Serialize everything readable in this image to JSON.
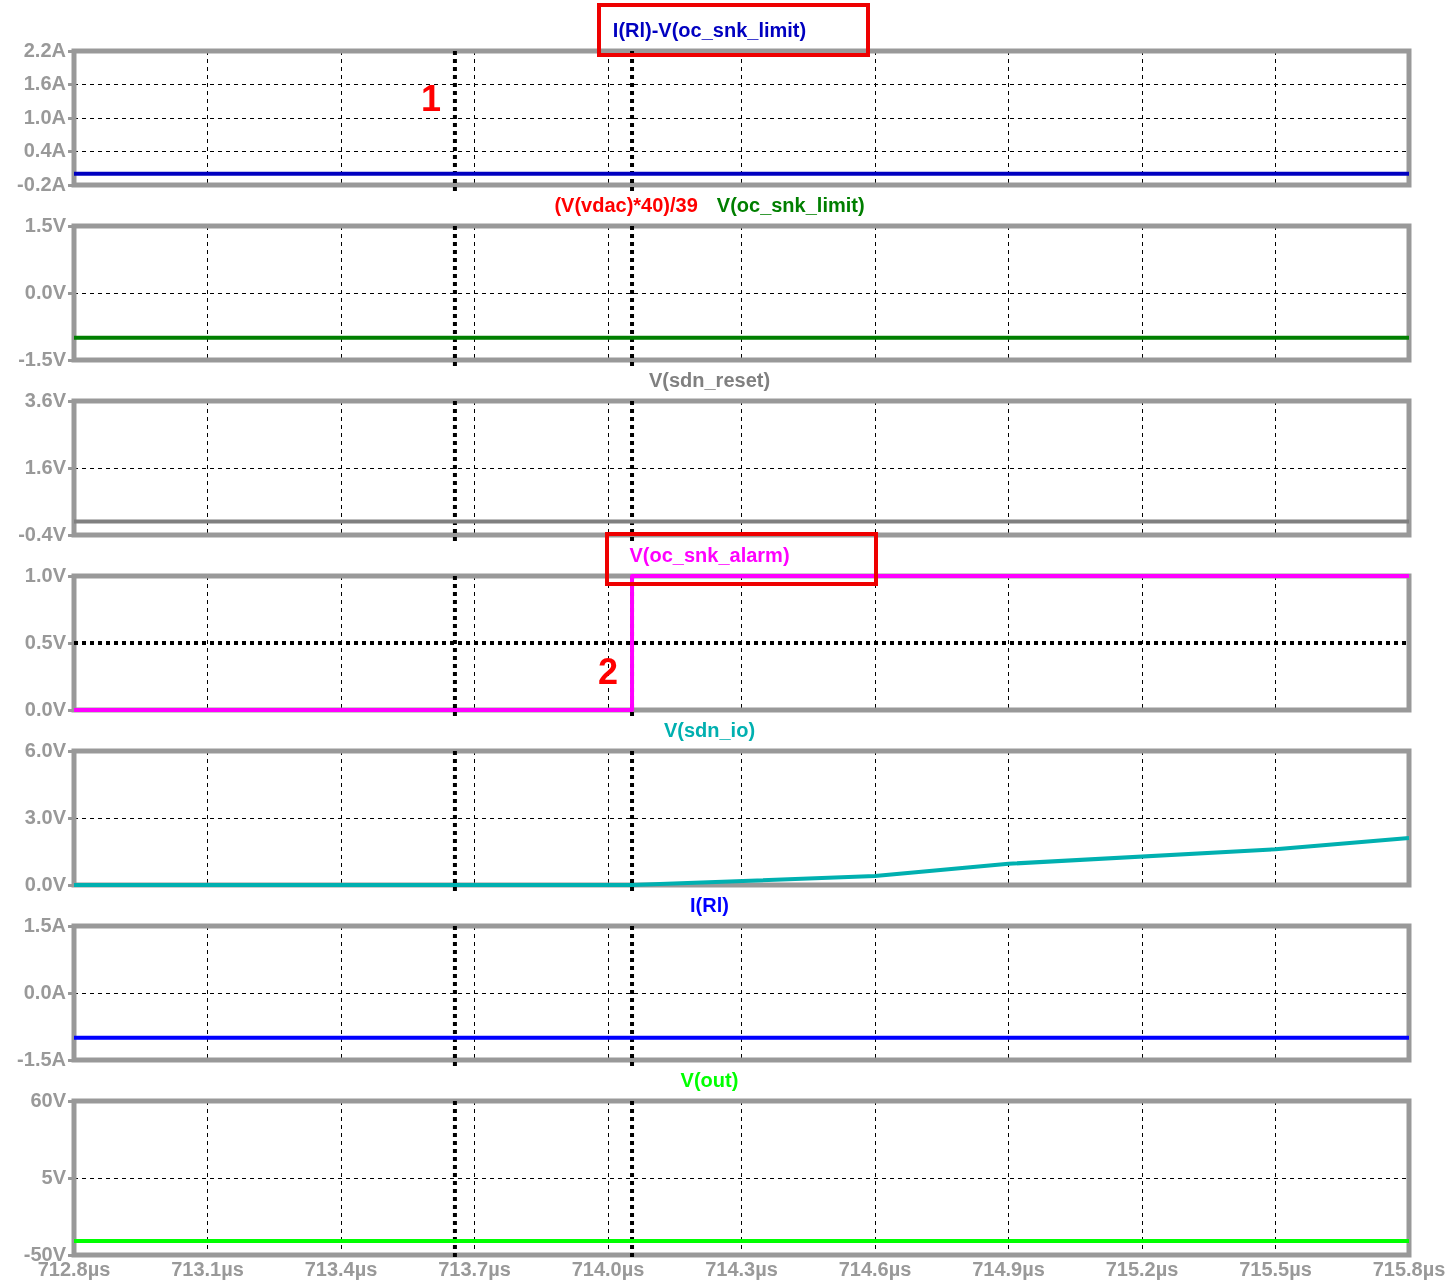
{
  "chart_data": [
    {
      "type": "line",
      "xlim": [
        712.8,
        715.8
      ],
      "xticks": [
        {
          "value": 712.8,
          "label": null
        },
        {
          "value": 713.1,
          "label": null
        },
        {
          "value": 713.4,
          "label": null
        },
        {
          "value": 713.7,
          "label": null
        },
        {
          "value": 714.0,
          "label": null
        },
        {
          "value": 714.3,
          "label": null
        },
        {
          "value": 714.6,
          "label": null
        },
        {
          "value": 714.9,
          "label": null
        },
        {
          "value": 715.2,
          "label": null
        },
        {
          "value": 715.5,
          "label": null
        },
        {
          "value": 715.8,
          "label": null
        }
      ],
      "ylim": [
        -0.2,
        2.2
      ],
      "yticks": [
        {
          "value": -0.2,
          "label": "-0.2A"
        },
        {
          "value": 0.4,
          "label": "0.4A"
        },
        {
          "value": 1.0,
          "label": "1.0A"
        },
        {
          "value": 1.6,
          "label": "1.6A"
        },
        {
          "value": 2.2,
          "label": "2.2A"
        }
      ],
      "tick_labels": "y",
      "grid": true,
      "legend": "top",
      "x": [
        712.8,
        715.8
      ],
      "series": [
        {
          "name": "I(Rl)-V(oc_snk_limit)",
          "color": "#0000c0",
          "values": [
            0,
            0
          ]
        }
      ],
      "ref_lines": [
        {
          "axis": "x",
          "value": 713.656,
          "color": "#000000",
          "line_style": "dotted"
        },
        {
          "axis": "x",
          "value": 714.054,
          "color": "#000000",
          "line_style": "dotted"
        }
      ],
      "annotations": [
        "1"
      ]
    },
    {
      "type": "line",
      "xlim": [
        712.8,
        715.8
      ],
      "xticks": [
        {
          "value": 712.8,
          "label": null
        },
        {
          "value": 713.1,
          "label": null
        },
        {
          "value": 713.4,
          "label": null
        },
        {
          "value": 713.7,
          "label": null
        },
        {
          "value": 714.0,
          "label": null
        },
        {
          "value": 714.3,
          "label": null
        },
        {
          "value": 714.6,
          "label": null
        },
        {
          "value": 714.9,
          "label": null
        },
        {
          "value": 715.2,
          "label": null
        },
        {
          "value": 715.5,
          "label": null
        },
        {
          "value": 715.8,
          "label": null
        }
      ],
      "ylim": [
        -1.5,
        1.5
      ],
      "yticks": [
        {
          "value": -1.5,
          "label": "-1.5V"
        },
        {
          "value": 0,
          "label": "0.0V"
        },
        {
          "value": 1.5,
          "label": "1.5V"
        }
      ],
      "tick_labels": "y",
      "grid": true,
      "legend": "top",
      "x": [
        712.8,
        715.8
      ],
      "series": [
        {
          "name": "(V(vdac)*40)/39",
          "color": "#ff0000",
          "values": [
            null,
            null
          ]
        },
        {
          "name": "V(oc_snk_limit)",
          "color": "#007f00",
          "values": [
            -1.0,
            -1.0
          ]
        }
      ],
      "ref_lines": [
        {
          "axis": "x",
          "value": 713.656,
          "color": "#000000",
          "line_style": "dotted"
        },
        {
          "axis": "x",
          "value": 714.054,
          "color": "#000000",
          "line_style": "dotted"
        }
      ]
    },
    {
      "type": "line",
      "xlim": [
        712.8,
        715.8
      ],
      "xticks": [
        {
          "value": 712.8,
          "label": null
        },
        {
          "value": 713.1,
          "label": null
        },
        {
          "value": 713.4,
          "label": null
        },
        {
          "value": 713.7,
          "label": null
        },
        {
          "value": 714.0,
          "label": null
        },
        {
          "value": 714.3,
          "label": null
        },
        {
          "value": 714.6,
          "label": null
        },
        {
          "value": 714.9,
          "label": null
        },
        {
          "value": 715.2,
          "label": null
        },
        {
          "value": 715.5,
          "label": null
        },
        {
          "value": 715.8,
          "label": null
        }
      ],
      "ylim": [
        -0.4,
        3.6
      ],
      "yticks": [
        {
          "value": -0.4,
          "label": "-0.4V"
        },
        {
          "value": 1.6,
          "label": "1.6V"
        },
        {
          "value": 3.6,
          "label": "3.6V"
        }
      ],
      "tick_labels": "y",
      "grid": true,
      "legend": "top",
      "x": [
        712.8,
        715.8
      ],
      "series": [
        {
          "name": "V(sdn_reset)",
          "color": "#808080",
          "values": [
            0,
            0
          ]
        }
      ],
      "ref_lines": [
        {
          "axis": "x",
          "value": 713.656,
          "color": "#000000",
          "line_style": "dotted"
        },
        {
          "axis": "x",
          "value": 714.054,
          "color": "#000000",
          "line_style": "dotted"
        }
      ]
    },
    {
      "type": "line",
      "xlim": [
        712.8,
        715.8
      ],
      "xticks": [
        {
          "value": 712.8,
          "label": null
        },
        {
          "value": 713.1,
          "label": null
        },
        {
          "value": 713.4,
          "label": null
        },
        {
          "value": 713.7,
          "label": null
        },
        {
          "value": 714.0,
          "label": null
        },
        {
          "value": 714.3,
          "label": null
        },
        {
          "value": 714.6,
          "label": null
        },
        {
          "value": 714.9,
          "label": null
        },
        {
          "value": 715.2,
          "label": null
        },
        {
          "value": 715.5,
          "label": null
        },
        {
          "value": 715.8,
          "label": null
        }
      ],
      "ylim": [
        0,
        1.0
      ],
      "yticks": [
        {
          "value": 0,
          "label": "0.0V"
        },
        {
          "value": 0.5,
          "label": "0.5V"
        },
        {
          "value": 1.0,
          "label": "1.0V"
        }
      ],
      "tick_labels": "y",
      "grid": true,
      "legend": "top",
      "x": [
        712.8,
        714.054,
        715.8
      ],
      "series": [
        {
          "name": "V(oc_snk_alarm)",
          "color": "#ff00ff",
          "type": "step",
          "values": [
            0,
            1,
            1
          ]
        }
      ],
      "ref_lines": [
        {
          "axis": "x",
          "value": 713.656,
          "color": "#000000",
          "line_style": "dotted"
        },
        {
          "axis": "x",
          "value": 714.054,
          "color": "#000000",
          "line_style": "dotted"
        },
        {
          "axis": "y",
          "value": 0.5,
          "color": "#000000",
          "line_style": "dotted"
        }
      ],
      "annotations": [
        "2"
      ]
    },
    {
      "type": "line",
      "xlim": [
        712.8,
        715.8
      ],
      "xticks": [
        {
          "value": 712.8,
          "label": null
        },
        {
          "value": 713.1,
          "label": null
        },
        {
          "value": 713.4,
          "label": null
        },
        {
          "value": 713.7,
          "label": null
        },
        {
          "value": 714.0,
          "label": null
        },
        {
          "value": 714.3,
          "label": null
        },
        {
          "value": 714.6,
          "label": null
        },
        {
          "value": 714.9,
          "label": null
        },
        {
          "value": 715.2,
          "label": null
        },
        {
          "value": 715.5,
          "label": null
        },
        {
          "value": 715.8,
          "label": null
        }
      ],
      "ylim": [
        0,
        6.0
      ],
      "yticks": [
        {
          "value": 0,
          "label": "0.0V"
        },
        {
          "value": 3.0,
          "label": "3.0V"
        },
        {
          "value": 6.0,
          "label": "6.0V"
        }
      ],
      "tick_labels": "y",
      "grid": true,
      "legend": "top",
      "x": [
        712.8,
        714.054,
        714.6,
        714.9,
        715.5,
        715.8
      ],
      "series": [
        {
          "name": "V(sdn_io)",
          "color": "#00b0b0",
          "values": [
            0,
            0,
            0.4,
            0.95,
            1.6,
            2.1
          ]
        }
      ],
      "ref_lines": [
        {
          "axis": "x",
          "value": 713.656,
          "color": "#000000",
          "line_style": "dotted"
        },
        {
          "axis": "x",
          "value": 714.054,
          "color": "#000000",
          "line_style": "dotted"
        }
      ]
    },
    {
      "type": "line",
      "xlim": [
        712.8,
        715.8
      ],
      "xticks": [
        {
          "value": 712.8,
          "label": null
        },
        {
          "value": 713.1,
          "label": null
        },
        {
          "value": 713.4,
          "label": null
        },
        {
          "value": 713.7,
          "label": null
        },
        {
          "value": 714.0,
          "label": null
        },
        {
          "value": 714.3,
          "label": null
        },
        {
          "value": 714.6,
          "label": null
        },
        {
          "value": 714.9,
          "label": null
        },
        {
          "value": 715.2,
          "label": null
        },
        {
          "value": 715.5,
          "label": null
        },
        {
          "value": 715.8,
          "label": null
        }
      ],
      "ylim": [
        -1.5,
        1.5
      ],
      "yticks": [
        {
          "value": -1.5,
          "label": "-1.5A"
        },
        {
          "value": 0,
          "label": "0.0A"
        },
        {
          "value": 1.5,
          "label": "1.5A"
        }
      ],
      "tick_labels": "y",
      "grid": true,
      "legend": "top",
      "x": [
        712.8,
        715.8
      ],
      "series": [
        {
          "name": "I(Rl)",
          "color": "#0000ff",
          "values": [
            -1.0,
            -1.0
          ]
        }
      ],
      "ref_lines": [
        {
          "axis": "x",
          "value": 713.656,
          "color": "#000000",
          "line_style": "dotted"
        },
        {
          "axis": "x",
          "value": 714.054,
          "color": "#000000",
          "line_style": "dotted"
        }
      ]
    },
    {
      "type": "line",
      "xlim": [
        712.8,
        715.8
      ],
      "xticks": [
        {
          "value": 712.8,
          "label": "712.8µs"
        },
        {
          "value": 713.1,
          "label": "713.1µs"
        },
        {
          "value": 713.4,
          "label": "713.4µs"
        },
        {
          "value": 713.7,
          "label": "713.7µs"
        },
        {
          "value": 714.0,
          "label": "714.0µs"
        },
        {
          "value": 714.3,
          "label": "714.3µs"
        },
        {
          "value": 714.6,
          "label": "714.6µs"
        },
        {
          "value": 714.9,
          "label": "714.9µs"
        },
        {
          "value": 715.2,
          "label": "715.2µs"
        },
        {
          "value": 715.5,
          "label": "715.5µs"
        },
        {
          "value": 715.8,
          "label": "715.8µs"
        }
      ],
      "ylim": [
        -50,
        60
      ],
      "yticks": [
        {
          "value": -50,
          "label": "-50V"
        },
        {
          "value": 5,
          "label": "5V"
        },
        {
          "value": 60,
          "label": "60V"
        }
      ],
      "grid": true,
      "legend": "top",
      "x": [
        712.8,
        715.8
      ],
      "series": [
        {
          "name": "V(out)",
          "color": "#00ff00",
          "values": [
            -40,
            -40
          ]
        }
      ],
      "ref_lines": [
        {
          "axis": "x",
          "value": 713.656,
          "color": "#000000",
          "line_style": "dotted"
        },
        {
          "axis": "x",
          "value": 714.054,
          "color": "#000000",
          "line_style": "dotted"
        }
      ]
    }
  ]
}
